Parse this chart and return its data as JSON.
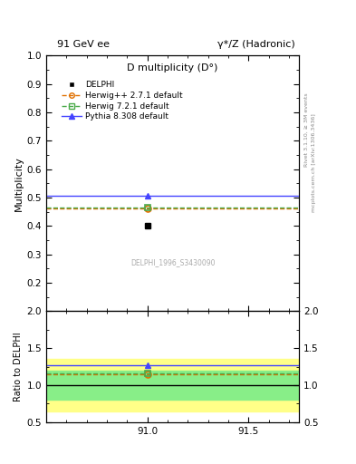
{
  "title_left": "91 GeV ee",
  "title_right": "γ*/Z (Hadronic)",
  "plot_title": "D multiplicity (D°)",
  "watermark": "DELPHI_1996_S3430090",
  "right_label_top": "Rivet 3.1.10, ≥ 3M events",
  "right_label_bottom": "mcplots.cern.ch [arXiv:1306.3436]",
  "xlim": [
    90.5,
    91.75
  ],
  "xticks": [
    91.0,
    91.5
  ],
  "ylim_main": [
    0.1,
    1.0
  ],
  "yticks_main": [
    0.2,
    0.3,
    0.4,
    0.5,
    0.6,
    0.7,
    0.8,
    0.9,
    1.0
  ],
  "ylabel_main": "Multiplicity",
  "ylim_ratio": [
    0.5,
    2.0
  ],
  "yticks_ratio": [
    0.5,
    1.0,
    1.5,
    2.0
  ],
  "ylabel_ratio": "Ratio to DELPHI",
  "data_x": 91.0,
  "data_y": 0.401,
  "data_color": "#000000",
  "data_label": "DELPHI",
  "herwig_pp_y": 0.462,
  "herwig_pp_color": "#e07000",
  "herwig_pp_label": "Herwig++ 2.7.1 default",
  "herwig72_y": 0.464,
  "herwig72_color": "#4aaa4a",
  "herwig72_label": "Herwig 7.2.1 default",
  "pythia_y": 0.507,
  "pythia_color": "#4444ff",
  "pythia_label": "Pythia 8.308 default",
  "band_yellow_low": 0.65,
  "band_yellow_high": 1.35,
  "band_green_low": 0.8,
  "band_green_high": 1.2,
  "ratio_herwig_pp": 1.152,
  "ratio_herwig72": 1.157,
  "ratio_pythia": 1.265
}
